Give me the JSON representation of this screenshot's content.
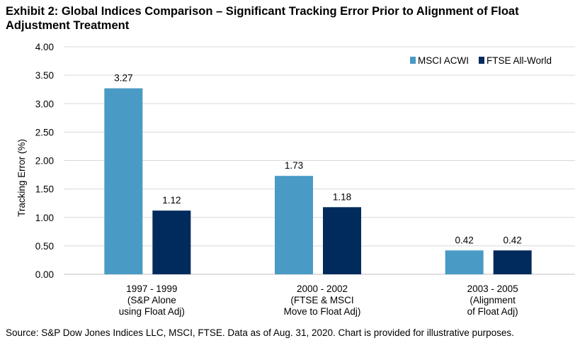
{
  "title": "Exhibit 2: Global Indices Comparison – Significant Tracking Error Prior to Alignment of Float Adjustment Treatment",
  "source": "Source: S&P Dow Jones Indices LLC, MSCI, FTSE. Data as of Aug. 31, 2020. Chart is provided for illustrative purposes.",
  "chart_data": {
    "type": "bar",
    "categories": [
      [
        "1997 - 1999",
        "(S&P Alone",
        "using Float Adj)"
      ],
      [
        "2000 - 2002",
        "(FTSE & MSCI",
        "Move to Float Adj)"
      ],
      [
        "2003 - 2005",
        "(Alignment",
        "of Float Adj)"
      ]
    ],
    "series": [
      {
        "name": "MSCI ACWI",
        "values": [
          3.27,
          1.73,
          0.42
        ],
        "labels": [
          "3.27",
          "1.73",
          "0.42"
        ],
        "color": "#4a9ac6"
      },
      {
        "name": "FTSE All-World",
        "values": [
          1.12,
          1.18,
          0.42
        ],
        "labels": [
          "1.12",
          "1.18",
          "0.42"
        ],
        "color": "#002b5c"
      }
    ],
    "ylabel": "Tracking Error (%)",
    "xlabel": "",
    "ylim": [
      0,
      4
    ],
    "yticks": [
      "0.00",
      "0.50",
      "1.00",
      "1.50",
      "2.00",
      "2.50",
      "3.00",
      "3.50",
      "4.00"
    ],
    "grid": true,
    "legend": "top-right"
  }
}
